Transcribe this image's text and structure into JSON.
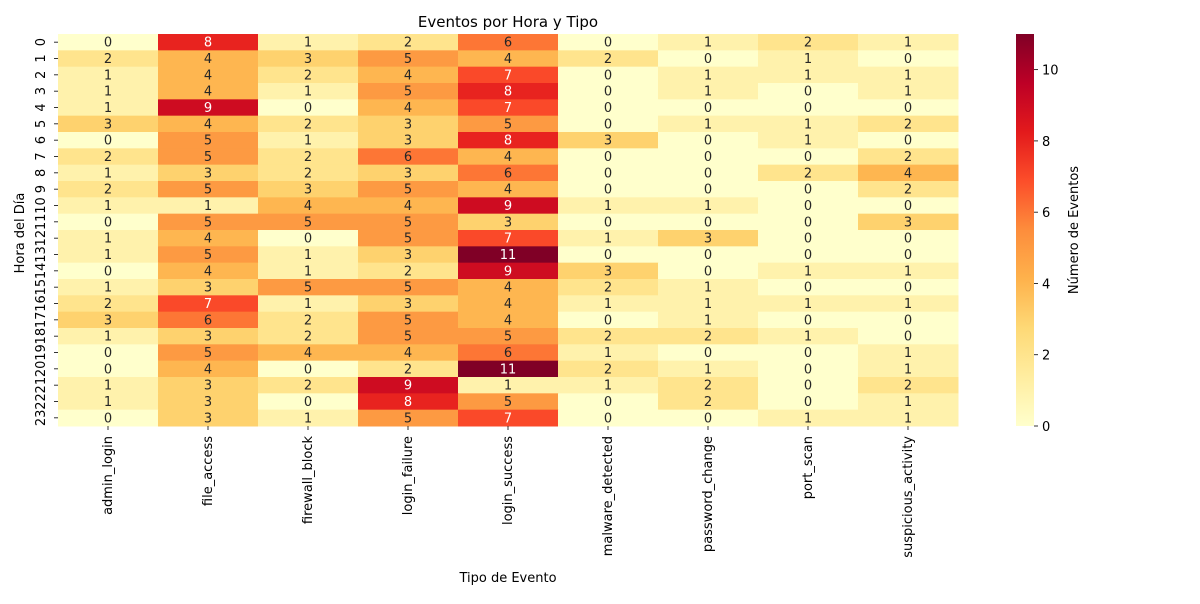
{
  "chart_data": {
    "type": "heatmap",
    "title": "Eventos por Hora y Tipo",
    "xlabel": "Tipo de Evento",
    "ylabel": "Hora del Día",
    "colorbar_label": "Número de Eventos",
    "colorbar_ticks": [
      0,
      2,
      4,
      6,
      8,
      10
    ],
    "value_range": [
      0,
      11
    ],
    "colormap": "YlOrRd",
    "colors": [
      "#ffffcc",
      "#ffeda0",
      "#fed976",
      "#feb24c",
      "#fd8d3c",
      "#fc4e2a",
      "#e31a1c",
      "#bd0026",
      "#800026"
    ],
    "x_categories": [
      "admin_login",
      "file_access",
      "firewall_block",
      "login_failure",
      "login_success",
      "malware_detected",
      "password_change",
      "port_scan",
      "suspicious_activity"
    ],
    "y_categories": [
      "0",
      "1",
      "2",
      "3",
      "4",
      "5",
      "6",
      "7",
      "8",
      "9",
      "10",
      "11",
      "12",
      "13",
      "14",
      "15",
      "16",
      "17",
      "18",
      "19",
      "20",
      "21",
      "22",
      "23"
    ],
    "values": [
      [
        0,
        8,
        1,
        2,
        6,
        0,
        1,
        2,
        1
      ],
      [
        2,
        4,
        3,
        5,
        4,
        2,
        0,
        1,
        0
      ],
      [
        1,
        4,
        2,
        4,
        7,
        0,
        1,
        1,
        1
      ],
      [
        1,
        4,
        1,
        5,
        8,
        0,
        1,
        0,
        1
      ],
      [
        1,
        9,
        0,
        4,
        7,
        0,
        0,
        0,
        0
      ],
      [
        3,
        4,
        2,
        3,
        5,
        0,
        1,
        1,
        2
      ],
      [
        0,
        5,
        1,
        3,
        8,
        3,
        0,
        1,
        0
      ],
      [
        2,
        5,
        2,
        6,
        4,
        0,
        0,
        0,
        2
      ],
      [
        1,
        3,
        2,
        3,
        6,
        0,
        0,
        2,
        4
      ],
      [
        2,
        5,
        3,
        5,
        4,
        0,
        0,
        0,
        2
      ],
      [
        1,
        1,
        4,
        4,
        9,
        1,
        1,
        0,
        0
      ],
      [
        0,
        5,
        5,
        5,
        3,
        0,
        0,
        0,
        3
      ],
      [
        1,
        4,
        0,
        5,
        7,
        1,
        3,
        0,
        0
      ],
      [
        1,
        5,
        1,
        3,
        11,
        0,
        0,
        0,
        0
      ],
      [
        0,
        4,
        1,
        2,
        9,
        3,
        0,
        1,
        1
      ],
      [
        1,
        3,
        5,
        5,
        4,
        2,
        1,
        0,
        0
      ],
      [
        2,
        7,
        1,
        3,
        4,
        1,
        1,
        1,
        1
      ],
      [
        3,
        6,
        2,
        5,
        4,
        0,
        1,
        0,
        0
      ],
      [
        1,
        3,
        2,
        5,
        5,
        2,
        2,
        1,
        0
      ],
      [
        0,
        5,
        4,
        4,
        6,
        1,
        0,
        0,
        1
      ],
      [
        0,
        4,
        0,
        2,
        11,
        2,
        1,
        0,
        1
      ],
      [
        1,
        3,
        2,
        9,
        1,
        1,
        2,
        0,
        2
      ],
      [
        1,
        3,
        0,
        8,
        5,
        0,
        2,
        0,
        1
      ],
      [
        0,
        3,
        1,
        5,
        7,
        0,
        0,
        1,
        1
      ]
    ]
  }
}
